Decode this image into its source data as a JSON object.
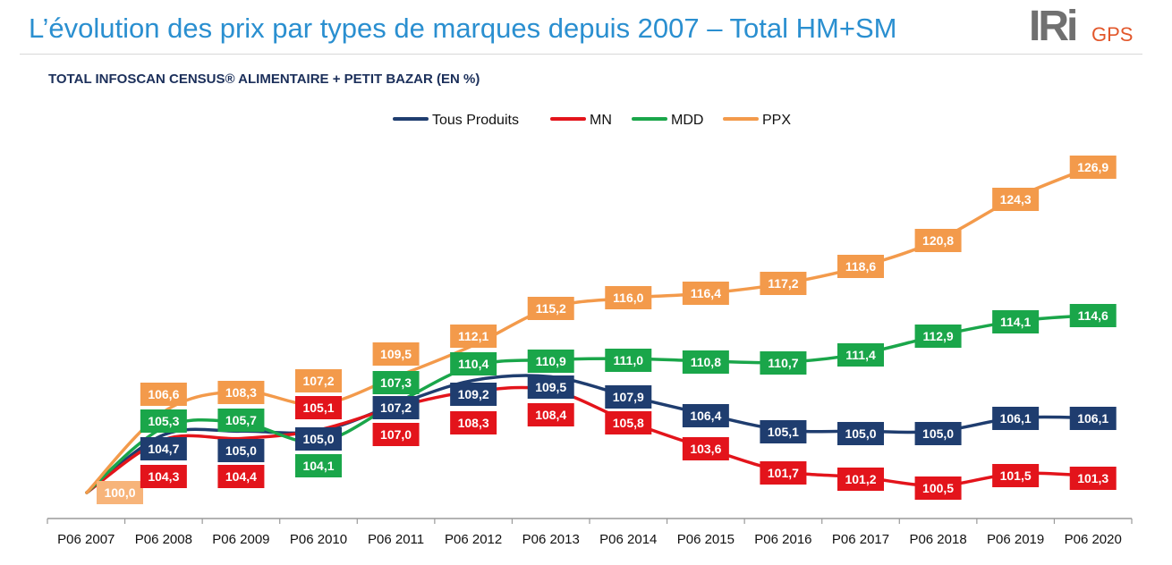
{
  "header": {
    "title": "L’évolution des prix par types de marques depuis 2007 – Total HM+SM",
    "logo_text": "IRi",
    "logo_subtext": "GPS"
  },
  "chart_data": {
    "type": "line",
    "title": "TOTAL INFOSCAN CENSUS® ALIMENTAIRE + PETIT BAZAR (EN %)",
    "xlabel": "",
    "ylabel": "",
    "legend_position": "top",
    "grid": false,
    "categories": [
      "P06 2007",
      "P06 2008",
      "P06 2009",
      "P06 2010",
      "P06 2011",
      "P06 2012",
      "P06 2013",
      "P06 2014",
      "P06 2015",
      "P06 2016",
      "P06 2017",
      "P06 2018",
      "P06 2019",
      "P06 2020"
    ],
    "series": [
      {
        "name": "Tous Produits",
        "color": "#1f3d6f",
        "values": [
          100.0,
          104.7,
          105.0,
          105.0,
          107.2,
          109.2,
          109.5,
          107.9,
          106.4,
          105.1,
          105.0,
          105.0,
          106.1,
          106.1
        ],
        "labels": [
          "",
          "104,7",
          "105,0",
          "105,0",
          "107,2",
          "109,2",
          "109,5",
          "107,9",
          "106,4",
          "105,1",
          "105,0",
          "105,0",
          "106,1",
          "106,1"
        ]
      },
      {
        "name": "MN",
        "color": "#e3141b",
        "values": [
          100.0,
          104.3,
          104.4,
          105.1,
          107.0,
          108.3,
          108.4,
          105.8,
          103.6,
          101.7,
          101.2,
          100.5,
          101.5,
          101.3
        ],
        "labels": [
          "",
          "104,3",
          "104,4",
          "105,1",
          "107,0",
          "108,3",
          "108,4",
          "105,8",
          "103,6",
          "101,7",
          "101,2",
          "100,5",
          "101,5",
          "101,3"
        ]
      },
      {
        "name": "MDD",
        "color": "#1aa64a",
        "values": [
          100.0,
          105.3,
          105.7,
          104.1,
          107.3,
          110.4,
          110.9,
          111.0,
          110.8,
          110.7,
          111.4,
          112.9,
          114.1,
          114.6
        ],
        "labels": [
          "",
          "105,3",
          "105,7",
          "104,1",
          "107,3",
          "110,4",
          "110,9",
          "111,0",
          "110,8",
          "110,7",
          "111,4",
          "112,9",
          "114,1",
          "114,6"
        ]
      },
      {
        "name": "PPX",
        "color": "#f39a4b",
        "values": [
          100.0,
          106.6,
          108.3,
          107.2,
          109.5,
          112.1,
          115.2,
          116.0,
          116.4,
          117.2,
          118.6,
          120.8,
          124.3,
          126.9
        ],
        "labels": [
          "100,0",
          "106,6",
          "108,3",
          "107,2",
          "109,5",
          "112,1",
          "115,2",
          "116,0",
          "116,4",
          "117,2",
          "118,6",
          "120,8",
          "124,3",
          "126,9"
        ]
      }
    ]
  }
}
